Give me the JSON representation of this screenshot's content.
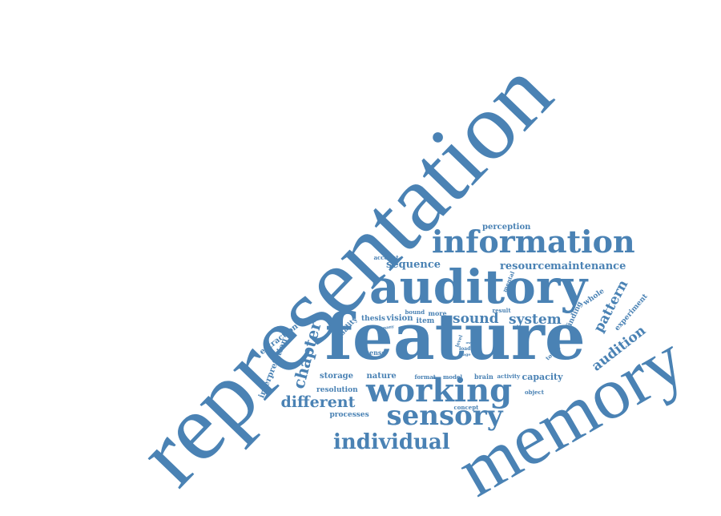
{
  "color": "#4a82b4",
  "words": [
    {
      "text": "representation"
    },
    {
      "text": "memory"
    },
    {
      "text": "feature"
    },
    {
      "text": "auditory"
    },
    {
      "text": "information"
    },
    {
      "text": "working"
    },
    {
      "text": "sensory"
    },
    {
      "text": "individual"
    },
    {
      "text": "different"
    },
    {
      "text": "chapter"
    },
    {
      "text": "sound"
    },
    {
      "text": "system"
    },
    {
      "text": "pattern"
    },
    {
      "text": "audition"
    },
    {
      "text": "sequence"
    },
    {
      "text": "resource"
    },
    {
      "text": "maintenance"
    },
    {
      "text": "perception"
    },
    {
      "text": "capacity"
    },
    {
      "text": "storage"
    },
    {
      "text": "nature"
    },
    {
      "text": "resolution"
    },
    {
      "text": "processes"
    },
    {
      "text": "interpretation"
    },
    {
      "text": "extraction"
    },
    {
      "text": "vision"
    },
    {
      "text": "thesis"
    },
    {
      "text": "item"
    },
    {
      "text": "quality"
    },
    {
      "text": "experiment"
    },
    {
      "text": "finding"
    },
    {
      "text": "whole"
    },
    {
      "text": "mental"
    },
    {
      "text": "bound"
    },
    {
      "text": "more"
    },
    {
      "text": "result"
    },
    {
      "text": "account"
    },
    {
      "text": "sense"
    },
    {
      "text": "format"
    },
    {
      "text": "model"
    },
    {
      "text": "brain"
    },
    {
      "text": "activity"
    },
    {
      "text": "object"
    },
    {
      "text": "concept"
    },
    {
      "text": "touch"
    },
    {
      "text": "level"
    },
    {
      "text": "load"
    },
    {
      "text": "stage"
    },
    {
      "text": "own"
    },
    {
      "text": "many"
    }
  ]
}
